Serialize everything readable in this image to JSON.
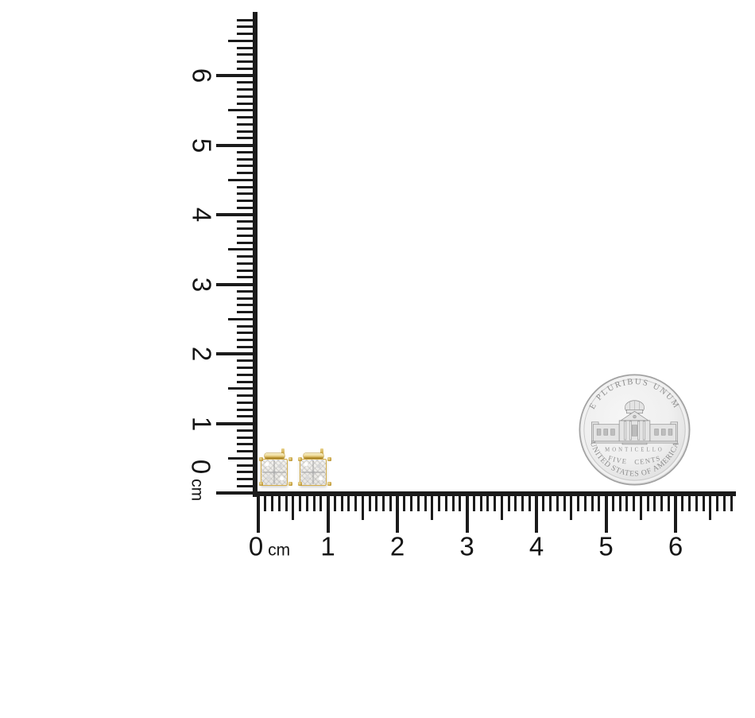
{
  "page": {
    "background": "#ffffff"
  },
  "rulers": {
    "color": "#1b1b1b",
    "unit": "cm",
    "vertical": {
      "zero_label": "0",
      "labels": [
        "1",
        "2",
        "3",
        "4",
        "5",
        "6"
      ]
    },
    "horizontal": {
      "zero_label": "0",
      "labels": [
        "1",
        "2",
        "3",
        "4",
        "5",
        "6"
      ]
    }
  },
  "earrings": {
    "gold_light": "#f3e6b5",
    "gold": "#d4ad48",
    "gold_dark": "#96751c",
    "pave_base": "#f3f2ef"
  },
  "coin": {
    "top_motto": "E PLURIBUS UNUM",
    "building_label": "MONTICELLO",
    "denomination": "FIVE CENTS",
    "country": "UNITED STATES OF AMERICA",
    "silver_edge": "#a9a9a9",
    "engraving": "#8d8d8d"
  }
}
